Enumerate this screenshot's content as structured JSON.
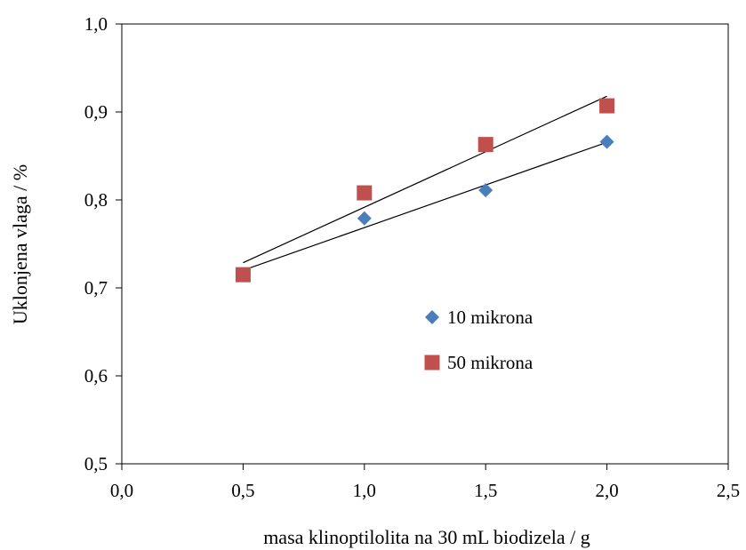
{
  "chart_data": {
    "type": "scatter",
    "title": "",
    "xlabel": "masa klinoptilolita na 30 mL biodizela / g",
    "ylabel": "Uklonjena vlaga / %",
    "xlim": [
      0.0,
      2.5
    ],
    "ylim": [
      0.5,
      1.0
    ],
    "x_ticks": [
      "0,0",
      "0,5",
      "1,0",
      "1,5",
      "2,0",
      "2,5"
    ],
    "y_ticks": [
      "0,5",
      "0,6",
      "0,7",
      "0,8",
      "0,9",
      "1,0"
    ],
    "grid": false,
    "legend_position": "center-right",
    "trendlines": "linear",
    "series": [
      {
        "name": "10 mikrona",
        "marker": "diamond",
        "color": "#4a7ebb",
        "x": [
          0.5,
          1.0,
          1.5,
          2.0
        ],
        "y": [
          0.715,
          0.779,
          0.811,
          0.866
        ]
      },
      {
        "name": "50 mikrona",
        "marker": "square",
        "color": "#c0504d",
        "x": [
          0.5,
          1.0,
          1.5,
          2.0
        ],
        "y": [
          0.715,
          0.808,
          0.863,
          0.907
        ]
      }
    ]
  }
}
